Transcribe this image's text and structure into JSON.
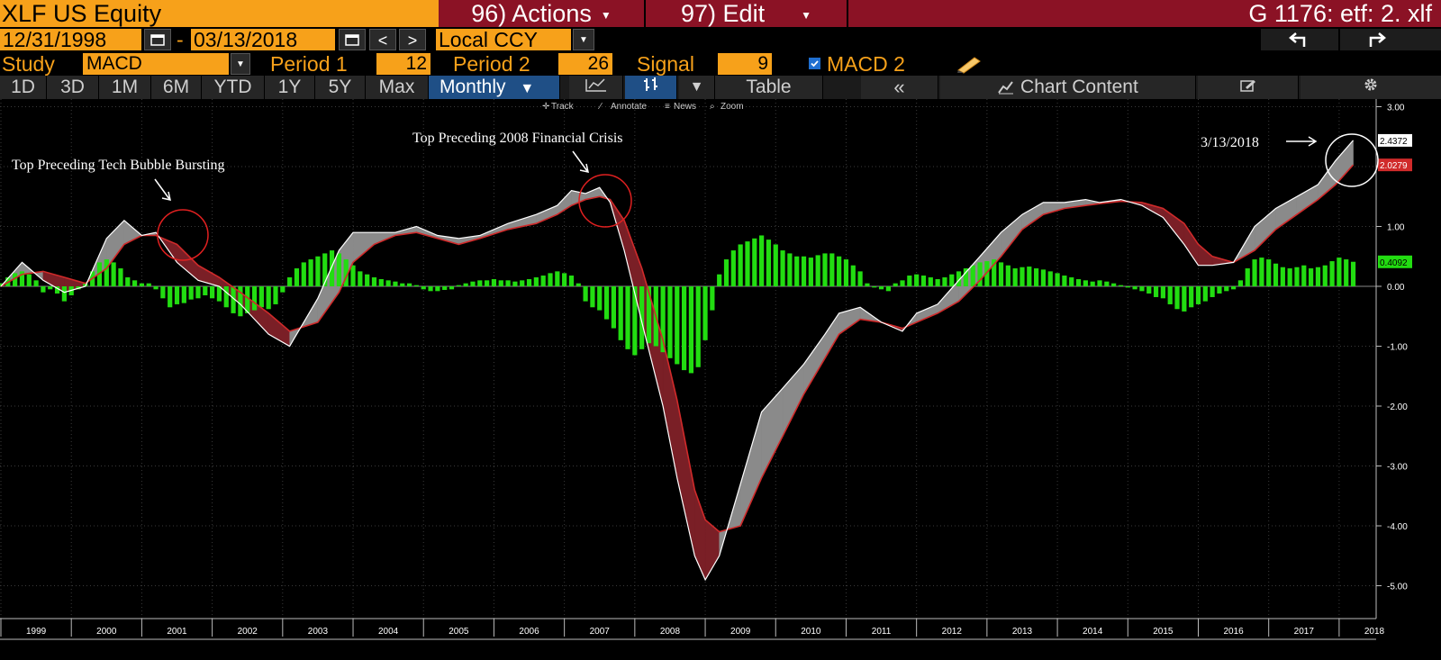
{
  "header": {
    "ticker": "XLF US Equity",
    "actions_label": "96) Actions",
    "edit_label": "97) Edit",
    "page_code": "G 1176: etf: 2. xlf"
  },
  "dates": {
    "start": "12/31/1998",
    "separator": "-",
    "end": "03/13/2018",
    "currency": "Local CCY"
  },
  "study": {
    "label": "Study",
    "value": "MACD",
    "period1_label": "Period 1",
    "period1_value": "12",
    "period2_label": "Period 2",
    "period2_value": "26",
    "signal_label": "Signal",
    "signal_value": "9",
    "macd2_label": "MACD 2",
    "macd2_checked": true
  },
  "toolbar": {
    "ranges": [
      "1D",
      "3D",
      "1M",
      "6M",
      "YTD",
      "1Y",
      "5Y",
      "Max"
    ],
    "frequency": "Monthly",
    "table_label": "Table",
    "chart_content_label": "Chart Content"
  },
  "chart_tools": {
    "track": "Track",
    "annotate": "Annotate",
    "news": "News",
    "zoom": "Zoom"
  },
  "annotations": {
    "tech_bubble": "Top Preceding Tech Bubble Bursting",
    "financial_crisis": "Top Preceding 2008 Financial Crisis",
    "latest_date": "3/13/2018"
  },
  "colors": {
    "accent": "#f7a11a",
    "menu": "#8b1225",
    "active_tab": "#1f4f86",
    "macd_line": "#ffffff",
    "signal_line": "#c0392b",
    "histogram": "#22dd11"
  },
  "chart_data": {
    "type": "line",
    "yticks": [
      "3.00",
      "2.00",
      "1.00",
      "0.00",
      "-1.00",
      "-2.00",
      "-3.00",
      "-4.00",
      "-5.00"
    ],
    "ylim": [
      -5.5,
      3.0
    ],
    "x_years": [
      "1999",
      "2000",
      "2001",
      "2002",
      "2003",
      "2004",
      "2005",
      "2006",
      "2007",
      "2008",
      "2009",
      "2010",
      "2011",
      "2012",
      "2013",
      "2014",
      "2015",
      "2016",
      "2017",
      "2018"
    ],
    "last_values": {
      "macd": "2.4372",
      "signal": "2.0279",
      "histogram": "0.4092"
    },
    "series": [
      {
        "name": "MACD",
        "points": [
          [
            1999.0,
            0.0
          ],
          [
            1999.3,
            0.4
          ],
          [
            1999.6,
            0.1
          ],
          [
            1999.9,
            -0.1
          ],
          [
            2000.2,
            0.0
          ],
          [
            2000.5,
            0.8
          ],
          [
            2000.75,
            1.1
          ],
          [
            2001.0,
            0.85
          ],
          [
            2001.2,
            0.9
          ],
          [
            2001.5,
            0.4
          ],
          [
            2001.8,
            0.1
          ],
          [
            2002.1,
            0.0
          ],
          [
            2002.4,
            -0.3
          ],
          [
            2002.8,
            -0.8
          ],
          [
            2003.1,
            -1.0
          ],
          [
            2003.5,
            -0.2
          ],
          [
            2003.8,
            0.6
          ],
          [
            2004.0,
            0.9
          ],
          [
            2004.3,
            0.9
          ],
          [
            2004.6,
            0.9
          ],
          [
            2004.9,
            1.0
          ],
          [
            2005.2,
            0.85
          ],
          [
            2005.5,
            0.8
          ],
          [
            2005.8,
            0.85
          ],
          [
            2006.2,
            1.05
          ],
          [
            2006.6,
            1.2
          ],
          [
            2006.9,
            1.35
          ],
          [
            2007.1,
            1.6
          ],
          [
            2007.3,
            1.55
          ],
          [
            2007.5,
            1.65
          ],
          [
            2007.65,
            1.4
          ],
          [
            2007.85,
            0.6
          ],
          [
            2008.1,
            -0.6
          ],
          [
            2008.4,
            -2.0
          ],
          [
            2008.6,
            -3.2
          ],
          [
            2008.85,
            -4.5
          ],
          [
            2009.0,
            -4.9
          ],
          [
            2009.2,
            -4.5
          ],
          [
            2009.5,
            -3.3
          ],
          [
            2009.8,
            -2.1
          ],
          [
            2010.1,
            -1.7
          ],
          [
            2010.4,
            -1.3
          ],
          [
            2010.7,
            -0.8
          ],
          [
            2010.9,
            -0.45
          ],
          [
            2011.2,
            -0.35
          ],
          [
            2011.5,
            -0.6
          ],
          [
            2011.8,
            -0.75
          ],
          [
            2012.0,
            -0.45
          ],
          [
            2012.3,
            -0.3
          ],
          [
            2012.6,
            0.1
          ],
          [
            2012.9,
            0.5
          ],
          [
            2013.2,
            0.9
          ],
          [
            2013.5,
            1.2
          ],
          [
            2013.8,
            1.4
          ],
          [
            2014.1,
            1.4
          ],
          [
            2014.4,
            1.45
          ],
          [
            2014.6,
            1.4
          ],
          [
            2014.9,
            1.45
          ],
          [
            2015.2,
            1.35
          ],
          [
            2015.5,
            1.15
          ],
          [
            2015.8,
            0.7
          ],
          [
            2016.0,
            0.35
          ],
          [
            2016.2,
            0.35
          ],
          [
            2016.5,
            0.4
          ],
          [
            2016.8,
            1.0
          ],
          [
            2017.1,
            1.3
          ],
          [
            2017.4,
            1.5
          ],
          [
            2017.7,
            1.7
          ],
          [
            2017.95,
            2.1
          ],
          [
            2018.2,
            2.4372
          ]
        ]
      },
      {
        "name": "Signal",
        "points": [
          [
            1999.0,
            0.0
          ],
          [
            1999.3,
            0.2
          ],
          [
            1999.6,
            0.25
          ],
          [
            1999.9,
            0.15
          ],
          [
            2000.2,
            0.05
          ],
          [
            2000.5,
            0.3
          ],
          [
            2000.75,
            0.7
          ],
          [
            2001.0,
            0.85
          ],
          [
            2001.2,
            0.85
          ],
          [
            2001.5,
            0.7
          ],
          [
            2001.8,
            0.35
          ],
          [
            2002.1,
            0.15
          ],
          [
            2002.4,
            -0.1
          ],
          [
            2002.8,
            -0.45
          ],
          [
            2003.1,
            -0.75
          ],
          [
            2003.5,
            -0.6
          ],
          [
            2003.8,
            -0.1
          ],
          [
            2004.0,
            0.4
          ],
          [
            2004.3,
            0.7
          ],
          [
            2004.6,
            0.85
          ],
          [
            2004.9,
            0.9
          ],
          [
            2005.2,
            0.8
          ],
          [
            2005.5,
            0.7
          ],
          [
            2005.8,
            0.8
          ],
          [
            2006.2,
            0.95
          ],
          [
            2006.6,
            1.05
          ],
          [
            2006.9,
            1.2
          ],
          [
            2007.1,
            1.35
          ],
          [
            2007.3,
            1.45
          ],
          [
            2007.5,
            1.5
          ],
          [
            2007.65,
            1.45
          ],
          [
            2007.85,
            1.1
          ],
          [
            2008.1,
            0.3
          ],
          [
            2008.4,
            -0.9
          ],
          [
            2008.6,
            -1.9
          ],
          [
            2008.85,
            -3.4
          ],
          [
            2009.0,
            -3.9
          ],
          [
            2009.2,
            -4.1
          ],
          [
            2009.5,
            -4.0
          ],
          [
            2009.8,
            -3.2
          ],
          [
            2010.1,
            -2.5
          ],
          [
            2010.4,
            -1.8
          ],
          [
            2010.7,
            -1.2
          ],
          [
            2010.9,
            -0.8
          ],
          [
            2011.2,
            -0.55
          ],
          [
            2011.5,
            -0.6
          ],
          [
            2011.8,
            -0.7
          ],
          [
            2012.0,
            -0.6
          ],
          [
            2012.3,
            -0.45
          ],
          [
            2012.6,
            -0.25
          ],
          [
            2012.9,
            0.1
          ],
          [
            2013.2,
            0.5
          ],
          [
            2013.5,
            0.95
          ],
          [
            2013.8,
            1.2
          ],
          [
            2014.1,
            1.3
          ],
          [
            2014.4,
            1.35
          ],
          [
            2014.6,
            1.38
          ],
          [
            2014.9,
            1.42
          ],
          [
            2015.2,
            1.4
          ],
          [
            2015.5,
            1.3
          ],
          [
            2015.8,
            1.05
          ],
          [
            2016.0,
            0.7
          ],
          [
            2016.2,
            0.5
          ],
          [
            2016.5,
            0.4
          ],
          [
            2016.8,
            0.6
          ],
          [
            2017.1,
            0.95
          ],
          [
            2017.4,
            1.2
          ],
          [
            2017.7,
            1.45
          ],
          [
            2017.95,
            1.7
          ],
          [
            2018.2,
            2.0279
          ]
        ]
      }
    ],
    "histogram": [
      [
        1999.0,
        0.05
      ],
      [
        1999.1,
        0.15
      ],
      [
        1999.2,
        0.22
      ],
      [
        1999.3,
        0.25
      ],
      [
        1999.4,
        0.2
      ],
      [
        1999.5,
        0.1
      ],
      [
        1999.6,
        -0.1
      ],
      [
        1999.7,
        -0.05
      ],
      [
        1999.8,
        -0.12
      ],
      [
        1999.9,
        -0.25
      ],
      [
        2000.0,
        -0.15
      ],
      [
        2000.1,
        -0.05
      ],
      [
        2000.2,
        0.05
      ],
      [
        2000.3,
        0.25
      ],
      [
        2000.4,
        0.4
      ],
      [
        2000.5,
        0.45
      ],
      [
        2000.6,
        0.4
      ],
      [
        2000.7,
        0.3
      ],
      [
        2000.8,
        0.15
      ],
      [
        2000.9,
        0.1
      ],
      [
        2001.0,
        0.05
      ],
      [
        2001.1,
        0.05
      ],
      [
        2001.2,
        -0.05
      ],
      [
        2001.3,
        -0.2
      ],
      [
        2001.4,
        -0.35
      ],
      [
        2001.5,
        -0.3
      ],
      [
        2001.6,
        -0.28
      ],
      [
        2001.7,
        -0.22
      ],
      [
        2001.8,
        -0.2
      ],
      [
        2001.9,
        -0.15
      ],
      [
        2002.0,
        -0.2
      ],
      [
        2002.1,
        -0.25
      ],
      [
        2002.2,
        -0.35
      ],
      [
        2002.3,
        -0.45
      ],
      [
        2002.4,
        -0.5
      ],
      [
        2002.5,
        -0.45
      ],
      [
        2002.6,
        -0.4
      ],
      [
        2002.7,
        -0.35
      ],
      [
        2002.8,
        -0.38
      ],
      [
        2002.9,
        -0.3
      ],
      [
        2003.0,
        -0.1
      ],
      [
        2003.1,
        0.15
      ],
      [
        2003.2,
        0.3
      ],
      [
        2003.3,
        0.4
      ],
      [
        2003.4,
        0.45
      ],
      [
        2003.5,
        0.5
      ],
      [
        2003.6,
        0.55
      ],
      [
        2003.7,
        0.6
      ],
      [
        2003.8,
        0.55
      ],
      [
        2003.9,
        0.45
      ],
      [
        2004.0,
        0.35
      ],
      [
        2004.1,
        0.25
      ],
      [
        2004.2,
        0.2
      ],
      [
        2004.3,
        0.15
      ],
      [
        2004.4,
        0.12
      ],
      [
        2004.5,
        0.1
      ],
      [
        2004.6,
        0.08
      ],
      [
        2004.7,
        0.05
      ],
      [
        2004.8,
        0.05
      ],
      [
        2004.9,
        0.02
      ],
      [
        2005.0,
        -0.05
      ],
      [
        2005.1,
        -0.08
      ],
      [
        2005.2,
        -0.08
      ],
      [
        2005.3,
        -0.06
      ],
      [
        2005.4,
        -0.05
      ],
      [
        2005.5,
        0.02
      ],
      [
        2005.6,
        0.05
      ],
      [
        2005.7,
        0.08
      ],
      [
        2005.8,
        0.1
      ],
      [
        2005.9,
        0.1
      ],
      [
        2006.0,
        0.12
      ],
      [
        2006.1,
        0.1
      ],
      [
        2006.2,
        0.1
      ],
      [
        2006.3,
        0.08
      ],
      [
        2006.4,
        0.1
      ],
      [
        2006.5,
        0.12
      ],
      [
        2006.6,
        0.15
      ],
      [
        2006.7,
        0.18
      ],
      [
        2006.8,
        0.22
      ],
      [
        2006.9,
        0.25
      ],
      [
        2007.0,
        0.22
      ],
      [
        2007.1,
        0.18
      ],
      [
        2007.2,
        0.05
      ],
      [
        2007.3,
        -0.25
      ],
      [
        2007.4,
        -0.35
      ],
      [
        2007.5,
        -0.4
      ],
      [
        2007.6,
        -0.55
      ],
      [
        2007.7,
        -0.7
      ],
      [
        2007.8,
        -0.9
      ],
      [
        2007.9,
        -1.05
      ],
      [
        2008.0,
        -1.15
      ],
      [
        2008.1,
        -1.05
      ],
      [
        2008.2,
        -0.95
      ],
      [
        2008.3,
        -1.0
      ],
      [
        2008.4,
        -1.1
      ],
      [
        2008.5,
        -1.2
      ],
      [
        2008.6,
        -1.3
      ],
      [
        2008.7,
        -1.4
      ],
      [
        2008.8,
        -1.45
      ],
      [
        2008.9,
        -1.35
      ],
      [
        2009.0,
        -0.9
      ],
      [
        2009.1,
        -0.4
      ],
      [
        2009.2,
        0.2
      ],
      [
        2009.3,
        0.45
      ],
      [
        2009.4,
        0.6
      ],
      [
        2009.5,
        0.7
      ],
      [
        2009.6,
        0.75
      ],
      [
        2009.7,
        0.8
      ],
      [
        2009.8,
        0.85
      ],
      [
        2009.9,
        0.78
      ],
      [
        2010.0,
        0.7
      ],
      [
        2010.1,
        0.6
      ],
      [
        2010.2,
        0.55
      ],
      [
        2010.3,
        0.5
      ],
      [
        2010.4,
        0.5
      ],
      [
        2010.5,
        0.48
      ],
      [
        2010.6,
        0.52
      ],
      [
        2010.7,
        0.55
      ],
      [
        2010.8,
        0.55
      ],
      [
        2010.9,
        0.5
      ],
      [
        2011.0,
        0.45
      ],
      [
        2011.1,
        0.35
      ],
      [
        2011.2,
        0.25
      ],
      [
        2011.3,
        0.05
      ],
      [
        2011.4,
        -0.02
      ],
      [
        2011.5,
        -0.05
      ],
      [
        2011.6,
        -0.08
      ],
      [
        2011.7,
        0.05
      ],
      [
        2011.8,
        0.1
      ],
      [
        2011.9,
        0.18
      ],
      [
        2012.0,
        0.2
      ],
      [
        2012.1,
        0.18
      ],
      [
        2012.2,
        0.15
      ],
      [
        2012.3,
        0.12
      ],
      [
        2012.4,
        0.15
      ],
      [
        2012.5,
        0.2
      ],
      [
        2012.6,
        0.25
      ],
      [
        2012.7,
        0.3
      ],
      [
        2012.8,
        0.35
      ],
      [
        2012.9,
        0.4
      ],
      [
        2013.0,
        0.42
      ],
      [
        2013.1,
        0.45
      ],
      [
        2013.2,
        0.4
      ],
      [
        2013.3,
        0.35
      ],
      [
        2013.4,
        0.3
      ],
      [
        2013.5,
        0.32
      ],
      [
        2013.6,
        0.33
      ],
      [
        2013.7,
        0.3
      ],
      [
        2013.8,
        0.28
      ],
      [
        2013.9,
        0.25
      ],
      [
        2014.0,
        0.22
      ],
      [
        2014.1,
        0.18
      ],
      [
        2014.2,
        0.15
      ],
      [
        2014.3,
        0.12
      ],
      [
        2014.4,
        0.1
      ],
      [
        2014.5,
        0.08
      ],
      [
        2014.6,
        0.1
      ],
      [
        2014.7,
        0.08
      ],
      [
        2014.8,
        0.05
      ],
      [
        2014.9,
        0.02
      ],
      [
        2015.0,
        -0.02
      ],
      [
        2015.1,
        -0.05
      ],
      [
        2015.2,
        -0.08
      ],
      [
        2015.3,
        -0.12
      ],
      [
        2015.4,
        -0.18
      ],
      [
        2015.5,
        -0.2
      ],
      [
        2015.6,
        -0.3
      ],
      [
        2015.7,
        -0.38
      ],
      [
        2015.8,
        -0.42
      ],
      [
        2015.9,
        -0.35
      ],
      [
        2016.0,
        -0.3
      ],
      [
        2016.1,
        -0.25
      ],
      [
        2016.2,
        -0.18
      ],
      [
        2016.3,
        -0.12
      ],
      [
        2016.4,
        -0.08
      ],
      [
        2016.5,
        -0.05
      ],
      [
        2016.6,
        0.1
      ],
      [
        2016.7,
        0.3
      ],
      [
        2016.8,
        0.45
      ],
      [
        2016.9,
        0.48
      ],
      [
        2017.0,
        0.45
      ],
      [
        2017.1,
        0.38
      ],
      [
        2017.2,
        0.32
      ],
      [
        2017.3,
        0.3
      ],
      [
        2017.4,
        0.32
      ],
      [
        2017.5,
        0.35
      ],
      [
        2017.6,
        0.3
      ],
      [
        2017.7,
        0.32
      ],
      [
        2017.8,
        0.35
      ],
      [
        2017.9,
        0.42
      ],
      [
        2018.0,
        0.48
      ],
      [
        2018.1,
        0.45
      ],
      [
        2018.2,
        0.41
      ]
    ]
  }
}
